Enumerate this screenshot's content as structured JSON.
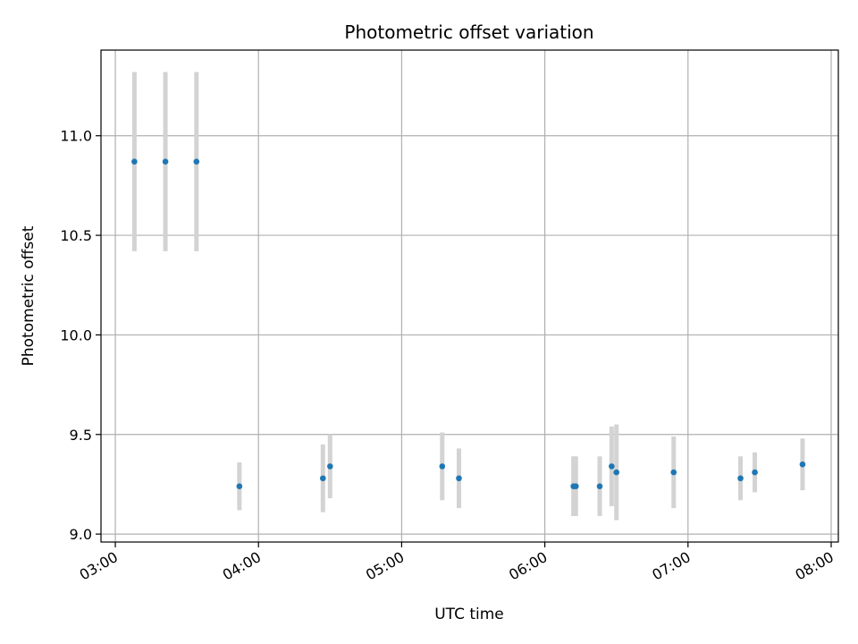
{
  "chart_data": {
    "type": "scatter",
    "title": "Photometric offset variation",
    "xlabel": "UTC time",
    "ylabel": "Photometric offset",
    "x_ticks": [
      "03:00",
      "04:00",
      "05:00",
      "06:00",
      "07:00",
      "08:00"
    ],
    "y_ticks": [
      "9.0",
      "9.5",
      "10.0",
      "10.5",
      "11.0"
    ],
    "xlim": [
      "02:54",
      "08:03"
    ],
    "ylim": [
      8.96,
      11.43
    ],
    "grid": true,
    "error_bar_color": "#d3d3d3",
    "point_color": "#1f77b4",
    "points": [
      {
        "x": "03:08",
        "y": 10.87,
        "err": 0.45
      },
      {
        "x": "03:21",
        "y": 10.87,
        "err": 0.45
      },
      {
        "x": "03:34",
        "y": 10.87,
        "err": 0.45
      },
      {
        "x": "03:52",
        "y": 9.24,
        "err": 0.12
      },
      {
        "x": "04:27",
        "y": 9.28,
        "err": 0.17
      },
      {
        "x": "04:30",
        "y": 9.34,
        "err": 0.16
      },
      {
        "x": "05:17",
        "y": 9.34,
        "err": 0.17
      },
      {
        "x": "05:24",
        "y": 9.28,
        "err": 0.15
      },
      {
        "x": "06:12",
        "y": 9.24,
        "err": 0.15
      },
      {
        "x": "06:13",
        "y": 9.24,
        "err": 0.15
      },
      {
        "x": "06:23",
        "y": 9.24,
        "err": 0.15
      },
      {
        "x": "06:28",
        "y": 9.34,
        "err": 0.2
      },
      {
        "x": "06:30",
        "y": 9.31,
        "err": 0.24
      },
      {
        "x": "06:54",
        "y": 9.31,
        "err": 0.18
      },
      {
        "x": "07:22",
        "y": 9.28,
        "err": 0.11
      },
      {
        "x": "07:28",
        "y": 9.31,
        "err": 0.1
      },
      {
        "x": "07:48",
        "y": 9.35,
        "err": 0.13
      }
    ]
  }
}
